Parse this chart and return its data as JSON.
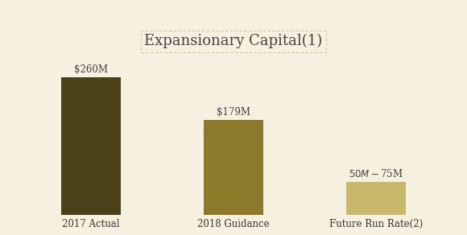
{
  "title": "Expansionary Capital",
  "title_superscript": "(1)",
  "categories": [
    "2017 Actual",
    "2018 Guidance",
    "Future Run Rate(2)"
  ],
  "values": [
    260,
    179,
    62.5
  ],
  "bar_labels": [
    "$260M",
    "$179M",
    "$50M - $75M"
  ],
  "bar_colors": [
    "#4a4118",
    "#8c7a2a",
    "#c8b96a"
  ],
  "background_color": "#f5f0e0",
  "ylim": [
    0,
    310
  ],
  "bar_width": 0.42,
  "label_fontsize": 8.5,
  "tick_fontsize": 8.5,
  "title_fontsize": 13
}
